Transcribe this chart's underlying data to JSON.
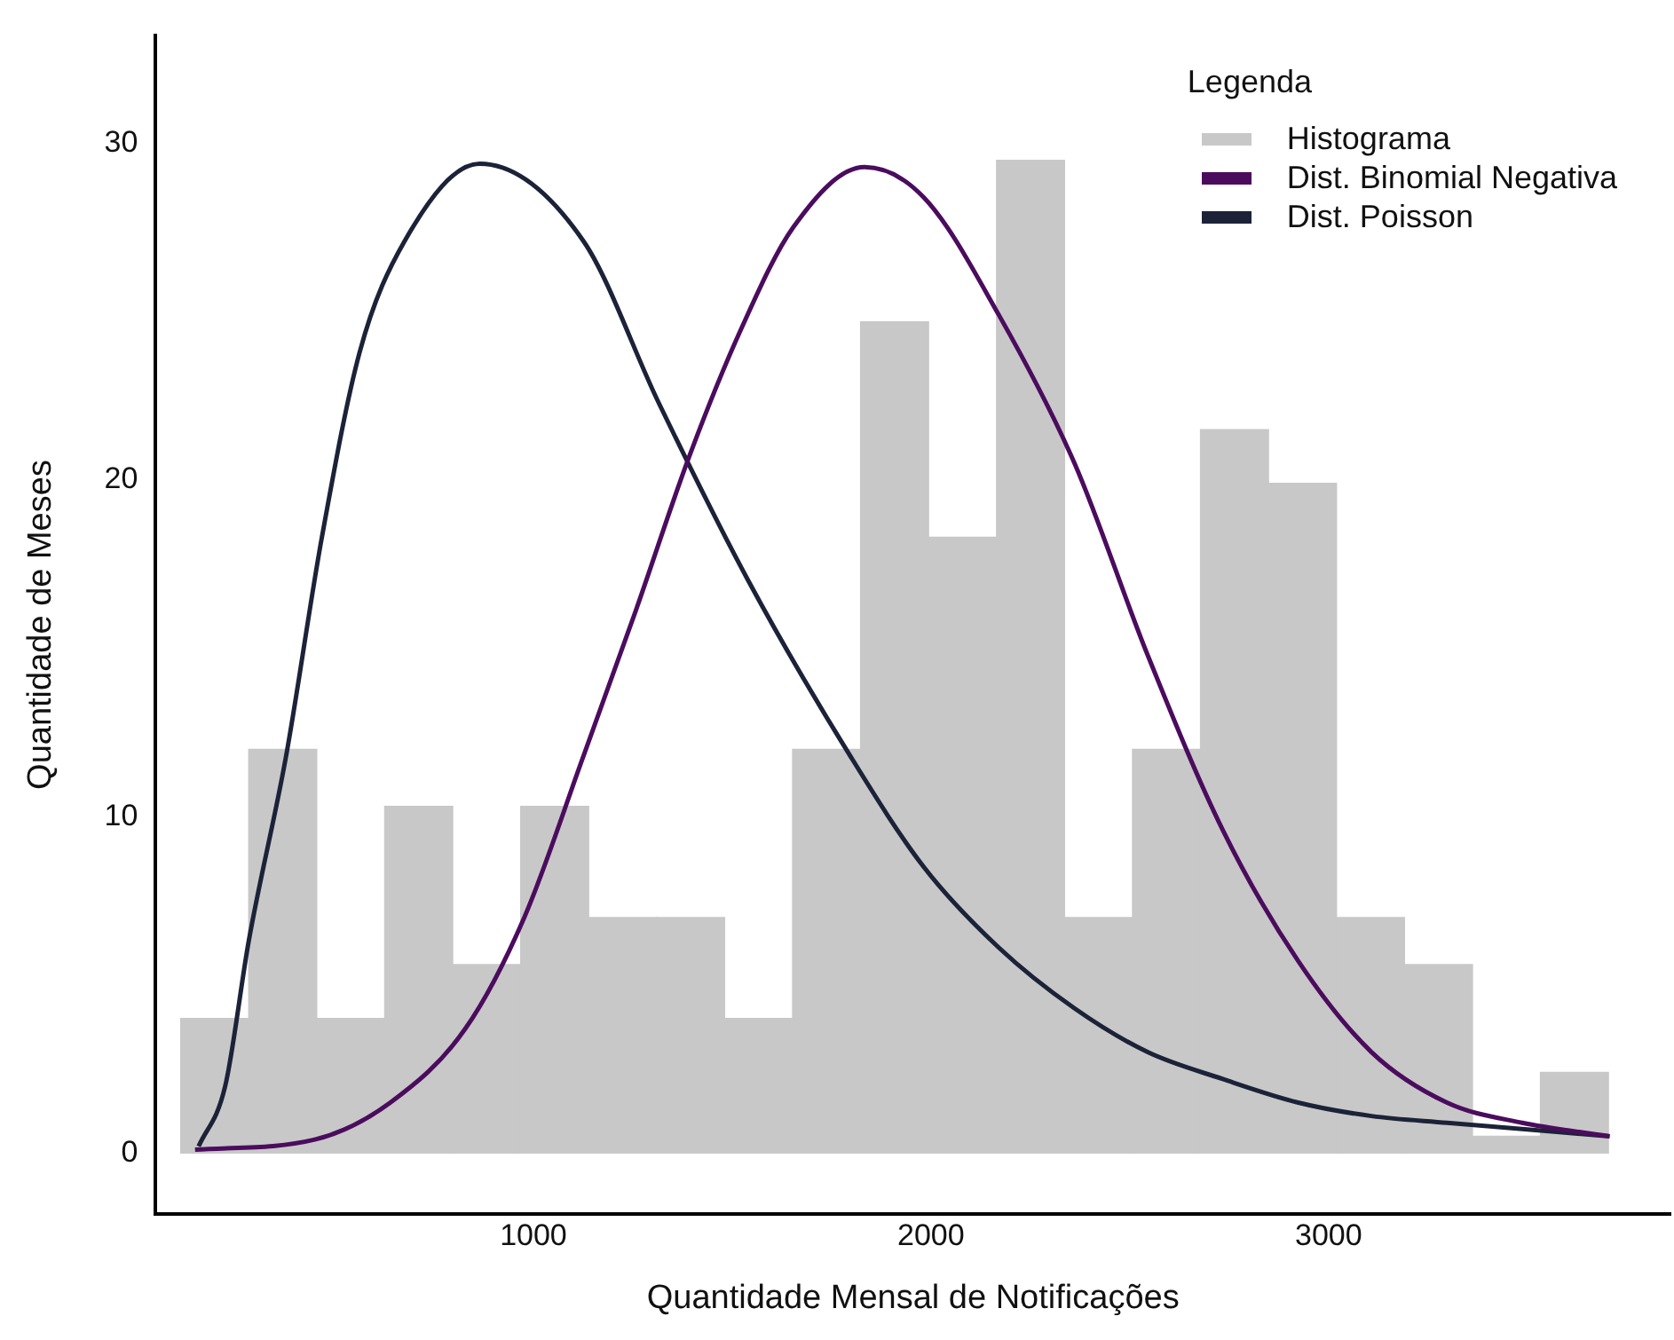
{
  "chart_data": {
    "type": "histogram",
    "xlabel": "Quantidade Mensal de Notificações",
    "ylabel": "Quantidade de Meses",
    "legend_title": "Legenda",
    "legend": "top right",
    "grid": false,
    "xlim": [
      50,
      3860
    ],
    "ylim": [
      -1.8,
      33.2
    ],
    "xticks": [
      1000,
      2000,
      3000
    ],
    "yticks": [
      0,
      10,
      20,
      30
    ],
    "bins": [
      113,
      284,
      455,
      626,
      797,
      968,
      1139,
      1310,
      1481,
      1652,
      1823,
      1994,
      2165,
      2336,
      2507,
      2678,
      2849,
      3020,
      3191,
      3362,
      3533,
      3704
    ],
    "series": [
      {
        "name": "Histograma",
        "color": "#c8c8c8",
        "values": [
          4,
          12,
          4,
          10.3,
          5.6,
          10.3,
          7,
          7,
          4,
          12,
          24.7,
          18.3,
          29.5,
          7,
          12,
          21.5,
          19.9,
          7,
          5.6,
          0.5,
          2.4
        ]
      },
      {
        "type": "line",
        "name": "Dist. Binomial Negativa",
        "color": "#4b0c5e",
        "x": [
          149,
          450,
          640,
          829,
          977,
          1126,
          1257,
          1392,
          1523,
          1653,
          1833,
          1982,
          2171,
          2361,
          2545,
          2734,
          2924,
          3108,
          3298,
          3487,
          3707
        ],
        "values": [
          0.1,
          0.4,
          1.5,
          3.7,
          7.0,
          11.8,
          16.1,
          20.7,
          24.5,
          27.5,
          29.3,
          28.4,
          24.9,
          20.5,
          14.8,
          9.6,
          5.7,
          3.0,
          1.5,
          0.9,
          0.5
        ]
      },
      {
        "type": "line",
        "name": "Dist. Poisson",
        "color": "#1c2238",
        "x": [
          158,
          225,
          284,
          378,
          468,
          563,
          676,
          865,
          1126,
          1315,
          1541,
          1797,
          1982,
          2171,
          2361,
          2545,
          2734,
          2924,
          3108,
          3298,
          3707
        ],
        "values": [
          0.2,
          2.0,
          6.3,
          11.8,
          18.3,
          23.8,
          27.1,
          29.4,
          27.1,
          22.3,
          17.0,
          11.8,
          8.5,
          6.1,
          4.3,
          3.0,
          2.2,
          1.5,
          1.1,
          0.9,
          0.5
        ]
      }
    ]
  }
}
